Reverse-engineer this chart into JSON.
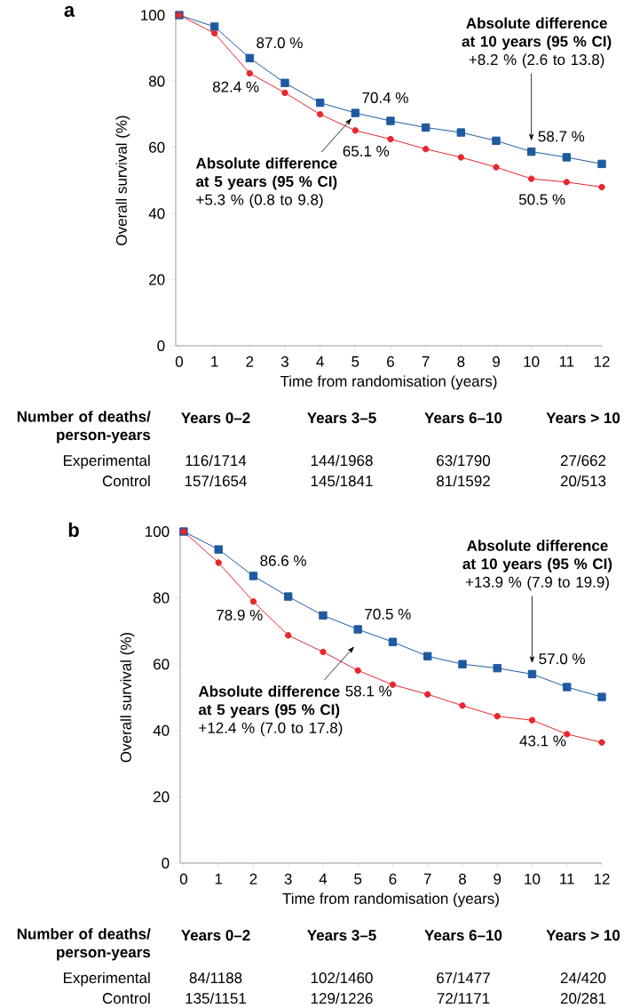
{
  "chart_data": [
    {
      "type": "line",
      "title": "a",
      "xlabel": "Time from randomisation (years)",
      "ylabel": "Overall survival (%)",
      "x": [
        0,
        1,
        2,
        3,
        4,
        5,
        6,
        7,
        8,
        9,
        10,
        11,
        12
      ],
      "xlim": [
        -0.1,
        12
      ],
      "ylim": [
        0,
        100
      ],
      "xticks": [
        0,
        1,
        2,
        3,
        4,
        5,
        6,
        7,
        8,
        9,
        10,
        11,
        12
      ],
      "yticks": [
        0,
        20,
        40,
        60,
        80,
        100
      ],
      "series": [
        {
          "color": "#1f5aa0",
          "marker": "square",
          "values": [
            100,
            96.5,
            87.0,
            79.5,
            73.5,
            70.4,
            68.0,
            66.0,
            64.5,
            62.0,
            58.7,
            57.0,
            55.0
          ]
        },
        {
          "color": "#e8262d",
          "marker": "circle",
          "values": [
            100,
            94.5,
            82.4,
            76.5,
            70.0,
            65.1,
            62.5,
            59.5,
            57.0,
            54.0,
            50.5,
            49.5,
            48.0
          ]
        }
      ],
      "annotations": [
        {
          "text": "87.0 %",
          "x": 2,
          "y": 87.0
        },
        {
          "text": "82.4 %",
          "x": 2,
          "y": 82.4
        },
        {
          "text": "70.4 %",
          "x": 5,
          "y": 70.4
        },
        {
          "text": "65.1 %",
          "x": 5,
          "y": 65.1
        },
        {
          "text": "58.7 %",
          "x": 10,
          "y": 58.7
        },
        {
          "text": "50.5 %",
          "x": 10,
          "y": 50.5
        },
        "**Absolute difference at 5 years (95 % CI)** +5.3 % (0.8 to 9.8)",
        "**Absolute difference at 10 years (95 % CI)** +8.2 % (2.6 to 13.8)",
        "Number of deaths/ person-years",
        "Years 0–2",
        "Years 3–5",
        "Years 6–10",
        "Years > 10",
        "Experimental",
        "116/1714",
        "144/1968",
        "63/1790",
        "27/662",
        "Control",
        "157/1654",
        "145/1841",
        "81/1592",
        "20/513"
      ]
    },
    {
      "type": "line",
      "title": "b",
      "xlabel": "Time from randomisation (years)",
      "ylabel": "Overall survival (%)",
      "x": [
        0,
        1,
        2,
        3,
        4,
        5,
        6,
        7,
        8,
        9,
        10,
        11,
        12
      ],
      "xlim": [
        -0.1,
        12
      ],
      "ylim": [
        0,
        100
      ],
      "xticks": [
        0,
        1,
        2,
        3,
        4,
        5,
        6,
        7,
        8,
        9,
        10,
        11,
        12
      ],
      "yticks": [
        0,
        20,
        40,
        60,
        80,
        100
      ],
      "series": [
        {
          "color": "#1f5aa0",
          "marker": "square",
          "values": [
            100,
            94.6,
            86.6,
            80.4,
            74.7,
            70.5,
            66.7,
            62.4,
            60.0,
            58.8,
            57.0,
            53.1,
            50.1
          ]
        },
        {
          "color": "#e8262d",
          "marker": "circle",
          "values": [
            100,
            90.6,
            78.9,
            68.7,
            63.7,
            58.1,
            53.8,
            50.9,
            47.5,
            44.3,
            43.1,
            38.9,
            36.4
          ]
        }
      ],
      "annotations": [
        {
          "text": "86.6 %",
          "x": 2,
          "y": 86.6
        },
        {
          "text": "78.9 %",
          "x": 2,
          "y": 78.9
        },
        {
          "text": "70.5 %",
          "x": 5,
          "y": 70.5
        },
        {
          "text": "58.1 %",
          "x": 5,
          "y": 58.1
        },
        {
          "text": "57.0 %",
          "x": 10,
          "y": 57.0
        },
        {
          "text": "43.1 %",
          "x": 10,
          "y": 43.1
        },
        "**Absolute difference at 5 years (95 % CI)** +12.4 % (7.0 to 17.8)",
        "**Absolute difference at 10 years (95 % CI)** +13.9 % (7.9 to 19.9)",
        "Number of deaths/ person-years",
        "Years 0–2",
        "Years 3–5",
        "Years 6–10",
        "Years > 10",
        "Experimental",
        "84/1188",
        "102/1460",
        "67/1477",
        "24/420",
        "Control",
        "135/1151",
        "129/1226",
        "72/1171",
        "20/281"
      ]
    }
  ]
}
